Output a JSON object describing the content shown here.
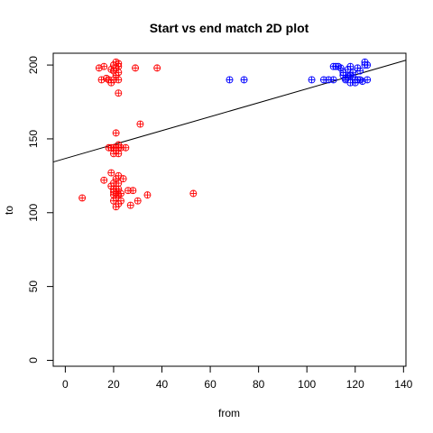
{
  "chart_data": {
    "type": "scatter",
    "title": "Start vs end match 2D plot",
    "xlabel": "from",
    "ylabel": "to",
    "xlim": [
      -5,
      141
    ],
    "ylim": [
      -4,
      208
    ],
    "xticks": [
      0,
      20,
      40,
      60,
      80,
      100,
      120,
      140
    ],
    "yticks": [
      0,
      50,
      100,
      150,
      200
    ],
    "grid": false,
    "legend": "none",
    "marker": "circle-plus",
    "series": [
      {
        "color": "#ff0000",
        "points": [
          [
            14,
            198
          ],
          [
            16,
            199
          ],
          [
            20,
            200
          ],
          [
            21,
            202
          ],
          [
            22,
            201
          ],
          [
            22,
            199
          ],
          [
            21,
            198
          ],
          [
            19,
            197
          ],
          [
            20,
            196
          ],
          [
            22,
            195
          ],
          [
            21,
            193
          ],
          [
            17,
            191
          ],
          [
            18,
            190
          ],
          [
            20,
            190
          ],
          [
            22,
            190
          ],
          [
            15,
            190
          ],
          [
            19,
            188
          ],
          [
            29,
            198
          ],
          [
            38,
            198
          ],
          [
            22,
            181
          ],
          [
            21,
            154
          ],
          [
            31,
            160
          ],
          [
            18,
            144
          ],
          [
            19,
            144
          ],
          [
            20,
            144
          ],
          [
            21,
            144
          ],
          [
            22,
            144
          ],
          [
            23,
            144
          ],
          [
            25,
            144
          ],
          [
            21,
            142
          ],
          [
            20,
            140
          ],
          [
            22,
            140
          ],
          [
            22,
            146
          ],
          [
            19,
            127
          ],
          [
            22,
            125
          ],
          [
            21,
            123
          ],
          [
            24,
            123
          ],
          [
            16,
            122
          ],
          [
            20,
            120
          ],
          [
            22,
            120
          ],
          [
            19,
            118
          ],
          [
            20,
            116
          ],
          [
            21,
            116
          ],
          [
            22,
            116
          ],
          [
            20,
            114
          ],
          [
            21,
            113
          ],
          [
            23,
            113
          ],
          [
            26,
            115
          ],
          [
            28,
            115
          ],
          [
            20,
            112
          ],
          [
            22,
            112
          ],
          [
            21,
            110
          ],
          [
            20,
            108
          ],
          [
            23,
            108
          ],
          [
            22,
            106
          ],
          [
            21,
            104
          ],
          [
            30,
            108
          ],
          [
            27,
            105
          ],
          [
            34,
            112
          ],
          [
            53,
            113
          ],
          [
            7,
            110
          ]
        ]
      },
      {
        "color": "#0000ff",
        "points": [
          [
            68,
            190
          ],
          [
            74,
            190
          ],
          [
            102,
            190
          ],
          [
            107,
            190
          ],
          [
            109,
            190
          ],
          [
            111,
            190
          ],
          [
            111,
            199
          ],
          [
            112,
            199
          ],
          [
            113,
            199
          ],
          [
            114,
            198
          ],
          [
            115,
            195
          ],
          [
            115,
            193
          ],
          [
            116,
            191
          ],
          [
            117,
            197
          ],
          [
            118,
            199
          ],
          [
            118,
            193
          ],
          [
            119,
            195
          ],
          [
            120,
            190
          ],
          [
            120,
            188
          ],
          [
            121,
            190
          ],
          [
            121,
            198
          ],
          [
            122,
            190
          ],
          [
            123,
            189
          ],
          [
            124,
            200
          ],
          [
            124,
            202
          ],
          [
            125,
            190
          ],
          [
            125,
            200
          ],
          [
            116,
            190
          ],
          [
            118,
            188
          ],
          [
            117,
            192
          ],
          [
            119,
            192
          ],
          [
            122,
            196
          ]
        ]
      }
    ],
    "regression_line": {
      "color": "#000000",
      "intercept": 136.7,
      "slope": 0.472
    }
  }
}
